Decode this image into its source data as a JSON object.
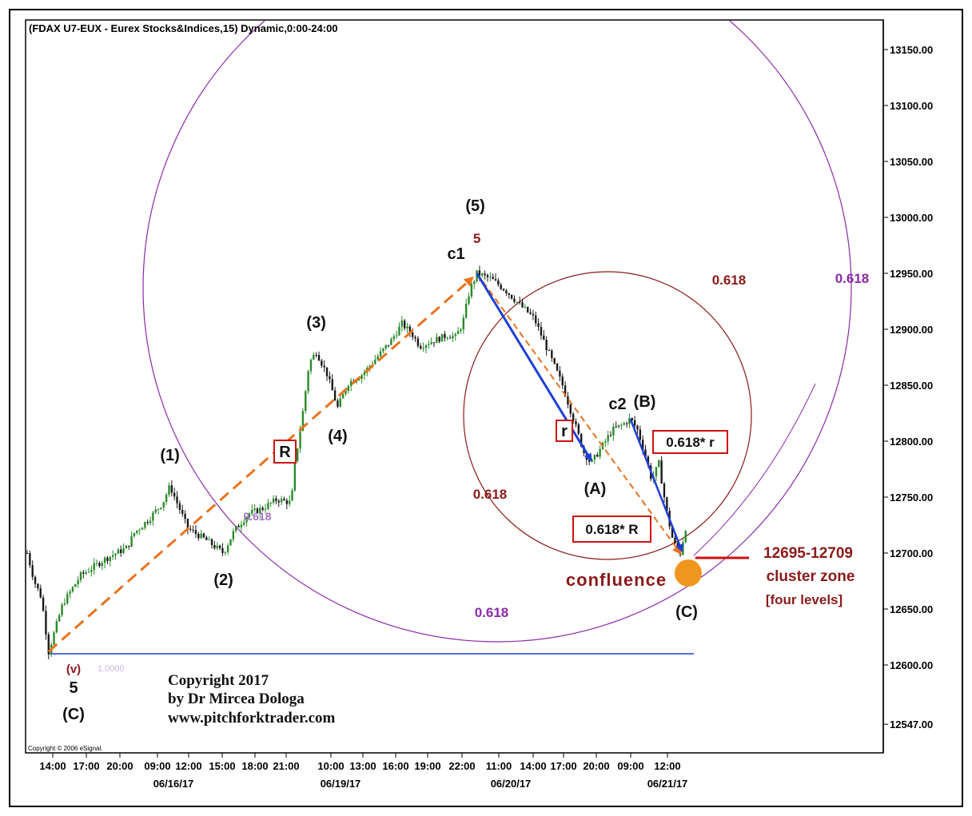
{
  "chart_data": {
    "type": "bar",
    "title": "(FDAX U7-EUX - Eurex Stocks&Indices,15) Dynamic,0:00-24:00",
    "y_ticks": [
      "13150.00",
      "13100.00",
      "13050.00",
      "13000.00",
      "12950.00",
      "12900.00",
      "12850.00",
      "12800.00",
      "12750.00",
      "12700.00",
      "12650.00",
      "12600.00",
      "12547.00"
    ],
    "y_tick_values": [
      13150,
      13100,
      13050,
      13000,
      12950,
      12900,
      12850,
      12800,
      12750,
      12700,
      12650,
      12600,
      12547
    ],
    "ylim": [
      12530,
      13170
    ],
    "x_ticks": [
      "14:00",
      "17:00",
      "20:00",
      "09:00",
      "12:00",
      "15:00",
      "18:00",
      "21:00",
      "10:00",
      "13:00",
      "16:00",
      "19:00",
      "22:00",
      "11:00",
      "14:00",
      "17:00",
      "20:00",
      "09:00",
      "12:00"
    ],
    "dates": [
      "06/16/17",
      "06/19/17",
      "06/20/17",
      "06/21/17"
    ],
    "price_path": [
      {
        "t": 0,
        "v": 12700
      },
      {
        "t": 2,
        "v": 12675
      },
      {
        "t": 4,
        "v": 12660
      },
      {
        "t": 6,
        "v": 12612
      },
      {
        "t": 10,
        "v": 12655
      },
      {
        "t": 15,
        "v": 12680
      },
      {
        "t": 22,
        "v": 12695
      },
      {
        "t": 28,
        "v": 12705
      },
      {
        "t": 30,
        "v": 12718
      },
      {
        "t": 34,
        "v": 12730
      },
      {
        "t": 38,
        "v": 12745
      },
      {
        "t": 40,
        "v": 12760
      },
      {
        "t": 45,
        "v": 12722
      },
      {
        "t": 50,
        "v": 12712
      },
      {
        "t": 55,
        "v": 12700
      },
      {
        "t": 58,
        "v": 12720
      },
      {
        "t": 62,
        "v": 12735
      },
      {
        "t": 66,
        "v": 12740
      },
      {
        "t": 70,
        "v": 12748
      },
      {
        "t": 74,
        "v": 12745
      },
      {
        "t": 75,
        "v": 12780
      },
      {
        "t": 77,
        "v": 12820
      },
      {
        "t": 79,
        "v": 12870
      },
      {
        "t": 81,
        "v": 12880
      },
      {
        "t": 84,
        "v": 12860
      },
      {
        "t": 87,
        "v": 12830
      },
      {
        "t": 90,
        "v": 12852
      },
      {
        "t": 94,
        "v": 12860
      },
      {
        "t": 98,
        "v": 12875
      },
      {
        "t": 102,
        "v": 12890
      },
      {
        "t": 105,
        "v": 12905
      },
      {
        "t": 108,
        "v": 12895
      },
      {
        "t": 110,
        "v": 12885
      },
      {
        "t": 114,
        "v": 12890
      },
      {
        "t": 118,
        "v": 12895
      },
      {
        "t": 120,
        "v": 12893
      },
      {
        "t": 122,
        "v": 12905
      },
      {
        "t": 124,
        "v": 12935
      },
      {
        "t": 126,
        "v": 12950
      },
      {
        "t": 130,
        "v": 12945
      },
      {
        "t": 134,
        "v": 12935
      },
      {
        "t": 138,
        "v": 12922
      },
      {
        "t": 142,
        "v": 12910
      },
      {
        "t": 146,
        "v": 12880
      },
      {
        "t": 150,
        "v": 12850
      },
      {
        "t": 153,
        "v": 12820
      },
      {
        "t": 156,
        "v": 12790
      },
      {
        "t": 158,
        "v": 12780
      },
      {
        "t": 161,
        "v": 12795
      },
      {
        "t": 164,
        "v": 12810
      },
      {
        "t": 167,
        "v": 12815
      },
      {
        "t": 169,
        "v": 12820
      },
      {
        "t": 171,
        "v": 12810
      },
      {
        "t": 173,
        "v": 12790
      },
      {
        "t": 175,
        "v": 12765
      },
      {
        "t": 177,
        "v": 12780
      },
      {
        "t": 179,
        "v": 12740
      },
      {
        "t": 181,
        "v": 12710
      },
      {
        "t": 183,
        "v": 12700
      },
      {
        "t": 185,
        "v": 12730
      }
    ],
    "waves": [
      {
        "label": "(1)",
        "t": 40,
        "v": 12760
      },
      {
        "label": "(2)",
        "t": 55,
        "v": 12700
      },
      {
        "label": "(3)",
        "t": 81,
        "v": 12880
      },
      {
        "label": "(4)",
        "t": 87,
        "v": 12830
      },
      {
        "label": "(5)",
        "t": 126,
        "v": 12950
      },
      {
        "label": "(A)",
        "t": 158,
        "v": 12780
      },
      {
        "label": "(B)",
        "t": 169,
        "v": 12820
      },
      {
        "label": "(C)",
        "t": 183,
        "v": 12700
      }
    ],
    "labels": {
      "c1": "c1",
      "five_red": "5",
      "c2": "c2",
      "v": "(v)",
      "five_low": "5",
      "c_low": "(C)",
      "R": "R",
      "r": "r",
      "r618": "0.618* r",
      "R618": "0.618* R",
      "confluence": "confluence",
      "fib_purple_1": "0.618",
      "fib_purple_2": "0.618",
      "fib_purple_3": "0.618",
      "fib_red_1": "0.618",
      "fib_red_2": "0.618",
      "faint_level": "1.0000"
    },
    "cluster": {
      "range": "12695-12709",
      "line2": "cluster zone",
      "line3": "[four levels]"
    },
    "copyright": {
      "line1": "Copyright 2017",
      "line2": "by Dr Mircea Dologa",
      "line3": "www.pitchforktrader.com",
      "small": "Copyright © 2006 eSignal."
    },
    "colors": {
      "candle_up": "#2a8a2a",
      "candle_down": "#1a1a1a",
      "orange": "#e8731e",
      "blue": "#1f3fd6",
      "purple": "#8a2aa8",
      "darkred": "#8b1a1a",
      "level_line": "#1f3fd6",
      "confluence_dot": "#f0961e"
    }
  }
}
